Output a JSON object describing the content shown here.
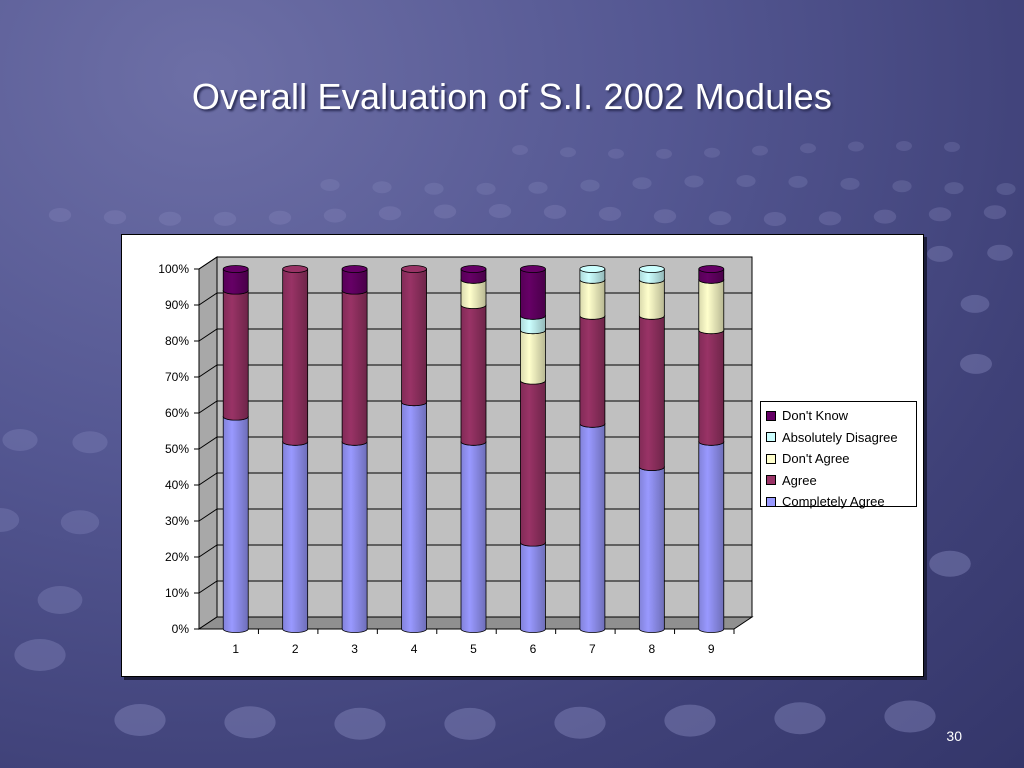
{
  "slide": {
    "title": "Overall Evaluation of S.I. 2002 Modules",
    "page_number": "30"
  },
  "colors": {
    "background": "#4a4c86",
    "completely_agree": "#9999ff",
    "agree": "#993366",
    "dont_agree": "#ffffcc",
    "absolutely_disagree": "#ccffff",
    "dont_know": "#660066",
    "plot_area": "#c0c0c0"
  },
  "chart_data": {
    "type": "bar",
    "stacked": "percent",
    "style": "3d-cylinder",
    "categories": [
      "1",
      "2",
      "3",
      "4",
      "5",
      "6",
      "7",
      "8",
      "9"
    ],
    "series": [
      {
        "name": "Completely Agree",
        "color": "#9999ff",
        "values": [
          59,
          52,
          52,
          63,
          52,
          24,
          57,
          45,
          52
        ]
      },
      {
        "name": "Agree",
        "color": "#993366",
        "values": [
          35,
          48,
          42,
          37,
          38,
          45,
          30,
          42,
          31
        ]
      },
      {
        "name": "Don't Agree",
        "color": "#ffffcc",
        "values": [
          0,
          0,
          0,
          0,
          7,
          14,
          10,
          10,
          14
        ]
      },
      {
        "name": "Absolutely Disagree",
        "color": "#ccffff",
        "values": [
          0,
          0,
          0,
          0,
          0,
          4,
          3,
          3,
          0
        ]
      },
      {
        "name": "Don't Know",
        "color": "#660066",
        "values": [
          6,
          0,
          6,
          0,
          3,
          13,
          0,
          0,
          3
        ]
      }
    ],
    "y_ticks": [
      "0%",
      "10%",
      "20%",
      "30%",
      "40%",
      "50%",
      "60%",
      "70%",
      "80%",
      "90%",
      "100%"
    ],
    "ylim": [
      0,
      100
    ],
    "grid": true,
    "legend_position": "right"
  }
}
